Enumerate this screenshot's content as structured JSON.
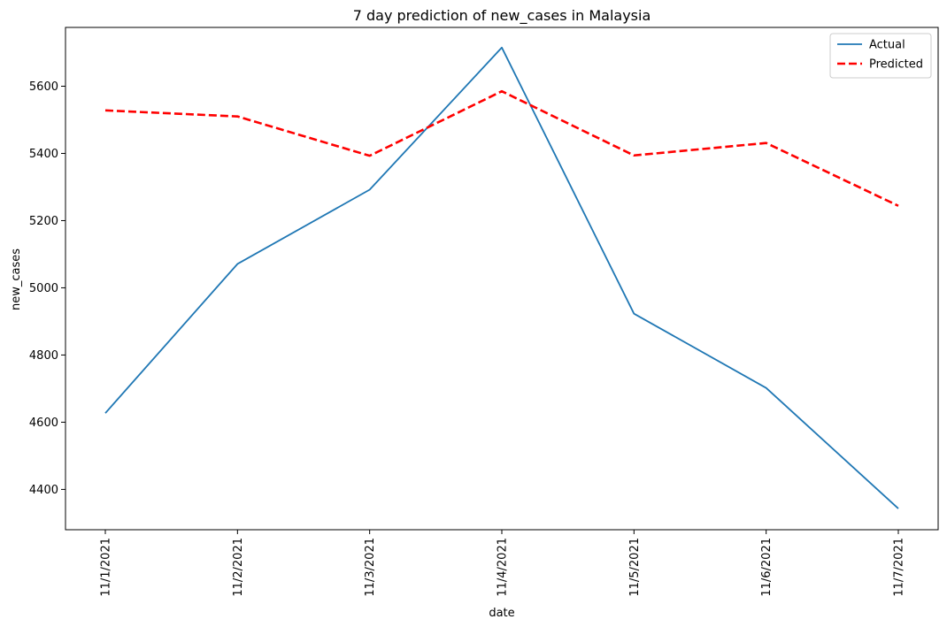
{
  "chart_data": {
    "type": "line",
    "title": "7 day prediction of new_cases in Malaysia",
    "xlabel": "date",
    "ylabel": "new_cases",
    "categories": [
      "11/1/2021",
      "11/2/2021",
      "11/3/2021",
      "11/4/2021",
      "11/5/2021",
      "11/6/2021",
      "11/7/2021"
    ],
    "ylim": [
      4280,
      5775
    ],
    "yticks": [
      4400,
      4600,
      4800,
      5000,
      5200,
      5400,
      5600
    ],
    "grid": false,
    "legend_position": "top-right",
    "series": [
      {
        "name": "Actual",
        "values": [
          4627,
          5071,
          5292,
          5715,
          4923,
          4702,
          4343
        ],
        "color": "#1f77b4",
        "style": "solid"
      },
      {
        "name": "Predicted",
        "values": [
          5528,
          5510,
          5393,
          5585,
          5394,
          5431,
          5244
        ],
        "color": "#ff0000",
        "style": "dashed"
      }
    ]
  }
}
